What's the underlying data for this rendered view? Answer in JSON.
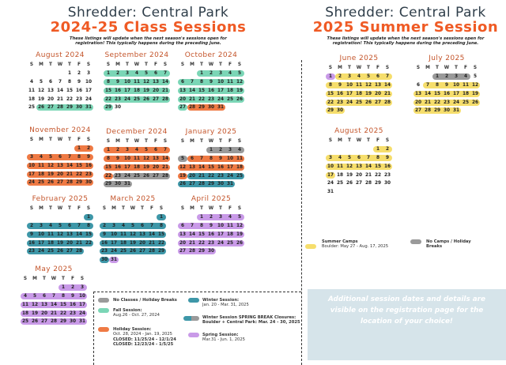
{
  "left_header": {
    "location": "Shredder: Central Park",
    "title": "2024-25 Class Sessions",
    "note_line1": "These listings will update when the next season's sessions open for",
    "note_line2": "registration! This typically happens during the preceding June."
  },
  "right_header": {
    "location": "Shredder: Central Park",
    "title": "2025 Summer Session",
    "note_line1": "These listings will update when the next season's sessions open for",
    "note_line2": "registration! This typically happens during the preceding June."
  },
  "weekdays": [
    "S",
    "M",
    "T",
    "W",
    "T",
    "F",
    "S"
  ],
  "colors": {
    "fall": "#7bd6b6",
    "holiday": "#ef7a44",
    "no_classes": "#9a9a9a",
    "winter": "#3e97a8",
    "spring": "#c99ae8",
    "summer": "#f6de6c",
    "title_orange": "#ef5a24"
  },
  "months": [
    {
      "id": "aug24",
      "title": "August 2024",
      "start": 4,
      "days": 31,
      "color": {
        "mint": [
          26,
          31
        ]
      }
    },
    {
      "id": "sep24",
      "title": "September 2024",
      "start": 0,
      "days": 30,
      "color": {
        "mint": [
          1,
          29
        ]
      }
    },
    {
      "id": "oct24",
      "title": "October 2024",
      "start": 2,
      "days": 31,
      "color": {
        "mint": [
          1,
          27
        ],
        "orange": [
          28,
          31
        ]
      }
    },
    {
      "id": "nov24",
      "title": "November 2024",
      "start": 5,
      "days": 30,
      "color": {
        "orange": [
          1,
          30
        ]
      }
    },
    {
      "id": "dec24",
      "title": "December 2024",
      "start": 0,
      "days": 31,
      "color": {
        "orange": [
          1,
          22
        ],
        "gray": [
          23,
          31
        ]
      }
    },
    {
      "id": "jan25",
      "title": "January 2025",
      "start": 3,
      "days": 31,
      "color": {
        "gray": [
          1,
          5
        ],
        "orange": [
          6,
          19
        ],
        "teal": [
          20,
          31
        ]
      }
    },
    {
      "id": "feb25",
      "title": "February 2025",
      "start": 6,
      "days": 28,
      "color": {
        "teal": [
          1,
          28
        ]
      }
    },
    {
      "id": "mar25",
      "title": "March 2025",
      "start": 6,
      "days": 31,
      "color": {
        "teal": [
          1,
          30
        ],
        "purple": [
          31,
          31
        ]
      }
    },
    {
      "id": "apr25",
      "title": "April 2025",
      "start": 2,
      "days": 30,
      "color": {
        "purple": [
          1,
          30
        ]
      }
    },
    {
      "id": "may25",
      "title": "May 2025",
      "start": 4,
      "days": 31,
      "color": {
        "purple": [
          1,
          31
        ]
      }
    },
    {
      "id": "jun25",
      "title": "June 2025",
      "start": 0,
      "days": 30,
      "color": {
        "purple": [
          1,
          1
        ],
        "yellow": [
          2,
          30
        ]
      }
    },
    {
      "id": "jul25",
      "title": "July 2025",
      "start": 2,
      "days": 31,
      "color": {
        "gray": [
          1,
          4
        ],
        "yellow": [
          7,
          31
        ]
      }
    },
    {
      "id": "aug25",
      "title": "August 2025",
      "start": 5,
      "days": 31,
      "color": {
        "yellow": [
          1,
          17
        ]
      }
    }
  ],
  "legend": {
    "no_classes": "No Classes / Holiday Breaks",
    "fall_title": "Fall Session:",
    "fall_dates": "Aug.26 - Oct. 27, 2024",
    "holiday_title": "Holiday Session:",
    "holiday_dates": "Oct. 28, 2024 - Jan. 19, 2025",
    "holiday_closed1": "CLOSED: 11/25/24 - 12/1/24",
    "holiday_closed2": "CLOSED: 12/23/24 - 1/5/25",
    "winter_title": "Winter Session:",
    "winter_dates": "Jan. 20 - Mar. 31, 2025",
    "spring_break": "Winter Session SPRING BREAK Closures:",
    "spring_break_dates": "Boulder + Central Park: Mar. 24 - 30, 2025",
    "spring_title": "Spring Session:",
    "spring_dates": "Mar.31 - Jun. 1, 2025",
    "summer_title": "Summer Camps",
    "summer_dates": "Boulder: May 27 - Aug. 17, 2025",
    "no_camps": "No Camps / Holiday",
    "no_camps2": "Breaks"
  },
  "info": "Additional session dates and details are visible on the registration page for the location of your choice!"
}
